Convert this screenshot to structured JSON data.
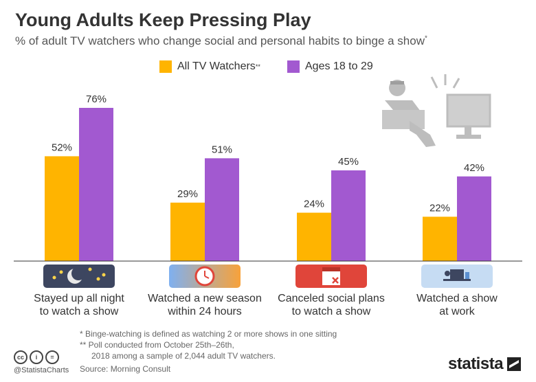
{
  "title": "Young Adults Keep Pressing Play",
  "subtitle": "% of adult TV watchers who change social and personal habits to binge a show",
  "subtitle_mark": "*",
  "legend": [
    {
      "label": "All TV Watchers",
      "mark": "**",
      "color": "#FFB400"
    },
    {
      "label": "Ages 18 to 29",
      "mark": "",
      "color": "#A259D0"
    }
  ],
  "chart_data": {
    "type": "bar",
    "categories": [
      "Stayed up all night to watch a show",
      "Watched a new season within 24 hours",
      "Canceled social plans to watch a show",
      "Watched a show at work"
    ],
    "category_lines": [
      [
        "Stayed up all night",
        "to watch a show"
      ],
      [
        "Watched a new season",
        "within 24 hours"
      ],
      [
        "Canceled social plans",
        "to watch a show"
      ],
      [
        "Watched a show",
        "at work"
      ]
    ],
    "series": [
      {
        "name": "All TV Watchers",
        "values": [
          52,
          29,
          24,
          22
        ],
        "color": "#FFB400"
      },
      {
        "name": "Ages 18 to 29",
        "values": [
          76,
          51,
          45,
          42
        ],
        "color": "#A259D0"
      }
    ],
    "value_suffix": "%",
    "ylim": [
      0,
      76
    ],
    "grid": false,
    "legend_position": "top-center"
  },
  "category_icons": [
    "night-sky-icon",
    "clock-icon",
    "calendar-cancel-icon",
    "office-desk-icon"
  ],
  "footnotes": [
    "*   Binge-watching is defined as watching 2 or more shows in one sitting",
    "** Poll conducted from October 25th–26th,",
    "2018 among a sample of 2,044 adult TV watchers."
  ],
  "source": "Source: Morning Consult",
  "handle": "@StatistaCharts",
  "cc_icons": [
    "cc",
    "i",
    "="
  ],
  "brand": "statista"
}
